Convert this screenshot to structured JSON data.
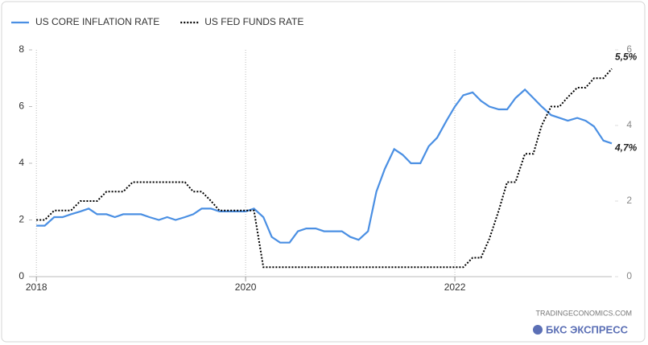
{
  "chart_data": {
    "type": "line",
    "x": [
      2018,
      2018.08,
      2018.17,
      2018.25,
      2018.33,
      2018.42,
      2018.5,
      2018.58,
      2018.67,
      2018.75,
      2018.83,
      2018.92,
      2019,
      2019.08,
      2019.17,
      2019.25,
      2019.33,
      2019.42,
      2019.5,
      2019.58,
      2019.67,
      2019.75,
      2019.83,
      2019.92,
      2020,
      2020.08,
      2020.17,
      2020.25,
      2020.33,
      2020.42,
      2020.5,
      2020.58,
      2020.67,
      2020.75,
      2020.83,
      2020.92,
      2021,
      2021.08,
      2021.17,
      2021.25,
      2021.33,
      2021.42,
      2021.5,
      2021.58,
      2021.67,
      2021.75,
      2021.83,
      2021.92,
      2022,
      2022.08,
      2022.17,
      2022.25,
      2022.33,
      2022.42,
      2022.5,
      2022.58,
      2022.67,
      2022.75,
      2022.83,
      2022.92,
      2023,
      2023.08,
      2023.17,
      2023.25,
      2023.33,
      2023.42,
      2023.5
    ],
    "series": [
      {
        "name": "US CORE INFLATION RATE",
        "color": "#4a8fe3",
        "axis": "y",
        "values": [
          1.8,
          1.8,
          2.1,
          2.1,
          2.2,
          2.3,
          2.4,
          2.2,
          2.2,
          2.1,
          2.2,
          2.2,
          2.2,
          2.1,
          2.0,
          2.1,
          2.0,
          2.1,
          2.2,
          2.4,
          2.4,
          2.3,
          2.3,
          2.3,
          2.3,
          2.4,
          2.1,
          1.4,
          1.2,
          1.2,
          1.6,
          1.7,
          1.7,
          1.6,
          1.6,
          1.6,
          1.4,
          1.3,
          1.6,
          3.0,
          3.8,
          4.5,
          4.3,
          4.0,
          4.0,
          4.6,
          4.9,
          5.5,
          6.0,
          6.4,
          6.5,
          6.2,
          6.0,
          5.9,
          5.9,
          6.3,
          6.6,
          6.3,
          6.0,
          5.7,
          5.6,
          5.5,
          5.6,
          5.5,
          5.3,
          4.8,
          4.7
        ],
        "value_labels": [
          null,
          null,
          null,
          null,
          null,
          null,
          null,
          null,
          null,
          null,
          null,
          null,
          null,
          null,
          null,
          null,
          null,
          null,
          null,
          null,
          null,
          null,
          null,
          null,
          null,
          null,
          null,
          null,
          null,
          null,
          null,
          null,
          null,
          null,
          null,
          null,
          null,
          null,
          null,
          null,
          null,
          null,
          null,
          null,
          null,
          null,
          null,
          null,
          null,
          null,
          null,
          null,
          null,
          null,
          null,
          null,
          null,
          null,
          null,
          null,
          null,
          null,
          null,
          null,
          null,
          null,
          "4,7%"
        ]
      },
      {
        "name": "US FED FUNDS RATE",
        "color": "#000000",
        "axis": "y2",
        "dash": "dotted",
        "values": [
          1.5,
          1.5,
          1.75,
          1.75,
          1.75,
          2.0,
          2.0,
          2.0,
          2.25,
          2.25,
          2.25,
          2.5,
          2.5,
          2.5,
          2.5,
          2.5,
          2.5,
          2.5,
          2.25,
          2.25,
          2.0,
          1.75,
          1.75,
          1.75,
          1.75,
          1.75,
          0.25,
          0.25,
          0.25,
          0.25,
          0.25,
          0.25,
          0.25,
          0.25,
          0.25,
          0.25,
          0.25,
          0.25,
          0.25,
          0.25,
          0.25,
          0.25,
          0.25,
          0.25,
          0.25,
          0.25,
          0.25,
          0.25,
          0.25,
          0.25,
          0.5,
          0.5,
          1.0,
          1.75,
          2.5,
          2.5,
          3.25,
          3.25,
          4.0,
          4.5,
          4.5,
          4.75,
          5.0,
          5.0,
          5.25,
          5.25,
          5.5
        ],
        "value_labels": [
          null,
          null,
          null,
          null,
          null,
          null,
          null,
          null,
          null,
          null,
          null,
          null,
          null,
          null,
          null,
          null,
          null,
          null,
          null,
          null,
          null,
          null,
          null,
          null,
          null,
          null,
          null,
          null,
          null,
          null,
          null,
          null,
          null,
          null,
          null,
          null,
          null,
          null,
          null,
          null,
          null,
          null,
          null,
          null,
          null,
          null,
          null,
          null,
          null,
          null,
          null,
          null,
          null,
          null,
          null,
          null,
          null,
          null,
          null,
          null,
          null,
          null,
          null,
          null,
          null,
          null,
          "5,5%"
        ]
      }
    ],
    "xlim": [
      2017.96,
      2023.5
    ],
    "xticks": [
      2018,
      2020,
      2022
    ],
    "ylim": [
      0,
      8
    ],
    "yticks": [
      0,
      2,
      4,
      6,
      8
    ],
    "y2lim": [
      0,
      6
    ],
    "y2ticks": [
      0,
      2,
      4,
      6
    ],
    "grid": true,
    "legend": "top-left",
    "source": "TRADINGECONOMICS.COM",
    "brand": "БКС ЭКСПРЕСС"
  }
}
